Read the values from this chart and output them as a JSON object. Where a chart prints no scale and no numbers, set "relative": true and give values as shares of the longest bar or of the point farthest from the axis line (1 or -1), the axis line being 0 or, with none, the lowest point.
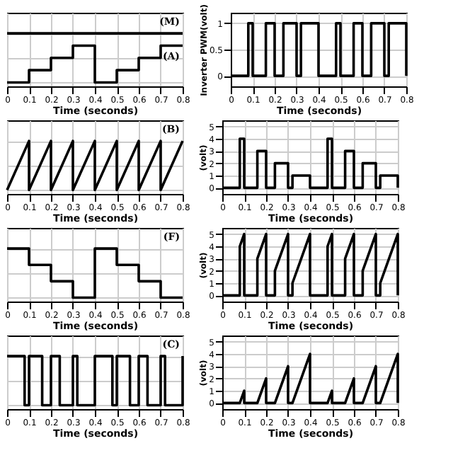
{
  "chart_data": [
    {
      "type": "step",
      "relative": true,
      "xlabel": "Time (seconds)",
      "xlim": [
        0,
        0.8
      ],
      "xticks": [
        0,
        0.1,
        0.2,
        0.3,
        0.4,
        0.5,
        0.6,
        0.7,
        0.8
      ],
      "grid": true,
      "series": [
        {
          "name": "(M)",
          "color": "#000000",
          "x": [
            0,
            0.8
          ],
          "values": [
            1,
            1
          ]
        },
        {
          "name": "(A)",
          "color": "#000000",
          "x": [
            0,
            0.1,
            0.2,
            0.3,
            0.4,
            0.5,
            0.6,
            0.7,
            0.8
          ],
          "values": [
            0,
            0.25,
            0.5,
            0.75,
            0,
            0.25,
            0.5,
            0.75,
            0.75
          ]
        }
      ]
    },
    {
      "type": "step",
      "xlabel": "Time (seconds)",
      "ylabel": "Inverter PWM(volt)",
      "xlim": [
        0,
        0.8
      ],
      "xticks": [
        0,
        0.1,
        0.2,
        0.3,
        0.4,
        0.5,
        0.6,
        0.7,
        0.8
      ],
      "ylim": [
        -0.2,
        1.2
      ],
      "yticks": [
        0,
        0.5,
        1
      ],
      "grid": true,
      "series": [
        {
          "color": "#000000",
          "x": [
            0,
            0.08,
            0.1,
            0.16,
            0.2,
            0.24,
            0.3,
            0.32,
            0.4,
            0.48,
            0.5,
            0.56,
            0.6,
            0.64,
            0.7,
            0.72,
            0.8
          ],
          "values": [
            0,
            1,
            0,
            1,
            0,
            1,
            0,
            1,
            0,
            1,
            0,
            1,
            0,
            1,
            0,
            1,
            0
          ]
        }
      ]
    },
    {
      "type": "line",
      "relative": true,
      "xlabel": "Time (seconds)",
      "xlim": [
        0,
        0.8
      ],
      "xticks": [
        0,
        0.1,
        0.2,
        0.3,
        0.4,
        0.5,
        0.6,
        0.7,
        0.8
      ],
      "grid": true,
      "series": [
        {
          "name": "(B)",
          "color": "#000000",
          "x": [
            0,
            0.1,
            0.1,
            0.2,
            0.2,
            0.3,
            0.3,
            0.4,
            0.4,
            0.5,
            0.5,
            0.6,
            0.6,
            0.7,
            0.7,
            0.8
          ],
          "values": [
            0,
            1,
            0,
            1,
            0,
            1,
            0,
            1,
            0,
            1,
            0,
            1,
            0,
            1,
            0,
            1
          ]
        }
      ]
    },
    {
      "type": "step",
      "xlabel": "Time (seconds)",
      "ylabel": "(volt)",
      "xlim": [
        0,
        0.8
      ],
      "xticks": [
        0,
        0.1,
        0.2,
        0.3,
        0.4,
        0.5,
        0.6,
        0.7,
        0.8
      ],
      "ylim": [
        -0.5,
        5.5
      ],
      "yticks": [
        0,
        1,
        2,
        3,
        4,
        5
      ],
      "grid": true,
      "series": [
        {
          "color": "#000000",
          "x": [
            0,
            0.08,
            0.1,
            0.16,
            0.2,
            0.24,
            0.3,
            0.32,
            0.4,
            0.48,
            0.5,
            0.56,
            0.6,
            0.64,
            0.7,
            0.72,
            0.8
          ],
          "values": [
            0,
            4,
            0,
            3,
            0,
            2,
            0,
            1,
            0,
            4,
            0,
            3,
            0,
            2,
            0,
            1,
            0
          ]
        }
      ]
    },
    {
      "type": "step",
      "relative": true,
      "xlabel": "Time (seconds)",
      "xlim": [
        0,
        0.8
      ],
      "xticks": [
        0,
        0.1,
        0.2,
        0.3,
        0.4,
        0.5,
        0.6,
        0.7,
        0.8
      ],
      "grid": true,
      "series": [
        {
          "name": "(F)",
          "color": "#000000",
          "x": [
            0,
            0.1,
            0.2,
            0.3,
            0.4,
            0.5,
            0.6,
            0.7,
            0.8
          ],
          "values": [
            1,
            0.667,
            0.333,
            0,
            1,
            0.667,
            0.333,
            0,
            0
          ]
        }
      ]
    },
    {
      "type": "line",
      "xlabel": "Time (seconds)",
      "ylabel": "(volt)",
      "xlim": [
        0,
        0.8
      ],
      "xticks": [
        0,
        0.1,
        0.2,
        0.3,
        0.4,
        0.5,
        0.6,
        0.7,
        0.8
      ],
      "ylim": [
        -0.5,
        5.5
      ],
      "yticks": [
        0,
        1,
        2,
        3,
        4,
        5
      ],
      "grid": true,
      "series": [
        {
          "color": "#000000",
          "x": [
            0,
            0.08,
            0.08,
            0.1,
            0.1,
            0.16,
            0.16,
            0.2,
            0.2,
            0.24,
            0.24,
            0.3,
            0.3,
            0.32,
            0.32,
            0.4,
            0.4,
            0.48,
            0.48,
            0.5,
            0.5,
            0.56,
            0.56,
            0.6,
            0.6,
            0.64,
            0.64,
            0.7,
            0.7,
            0.72,
            0.72,
            0.8,
            0.8
          ],
          "values": [
            0,
            0,
            4,
            5,
            0,
            0,
            3,
            5,
            0,
            0,
            2,
            5,
            0,
            0,
            1,
            5,
            0,
            0,
            4,
            5,
            0,
            0,
            3,
            5,
            0,
            0,
            2,
            5,
            0,
            0,
            1,
            5,
            0
          ]
        }
      ]
    },
    {
      "type": "step",
      "relative": true,
      "xlabel": "Time (seconds)",
      "xlim": [
        0,
        0.8
      ],
      "xticks": [
        0,
        0.1,
        0.2,
        0.3,
        0.4,
        0.5,
        0.6,
        0.7,
        0.8
      ],
      "grid": true,
      "series": [
        {
          "name": "(C)",
          "color": "#000000",
          "x": [
            0,
            0.08,
            0.1,
            0.16,
            0.2,
            0.24,
            0.3,
            0.32,
            0.4,
            0.48,
            0.5,
            0.56,
            0.6,
            0.64,
            0.7,
            0.72,
            0.8
          ],
          "values": [
            1,
            0,
            1,
            0,
            1,
            0,
            1,
            0,
            1,
            0,
            1,
            0,
            1,
            0,
            1,
            0,
            1
          ]
        }
      ]
    },
    {
      "type": "line",
      "xlabel": "Time (seconds)",
      "ylabel": "(volt)",
      "xlim": [
        0,
        0.8
      ],
      "xticks": [
        0,
        0.1,
        0.2,
        0.3,
        0.4,
        0.5,
        0.6,
        0.7,
        0.8
      ],
      "ylim": [
        -0.5,
        5.5
      ],
      "yticks": [
        0,
        1,
        2,
        3,
        4,
        5
      ],
      "grid": true,
      "series": [
        {
          "color": "#000000",
          "x": [
            0,
            0.08,
            0.1,
            0.1,
            0.16,
            0.2,
            0.2,
            0.24,
            0.3,
            0.3,
            0.32,
            0.4,
            0.4,
            0.48,
            0.5,
            0.5,
            0.56,
            0.6,
            0.6,
            0.64,
            0.7,
            0.7,
            0.72,
            0.8,
            0.8
          ],
          "values": [
            0,
            0,
            1,
            0,
            0,
            2,
            0,
            0,
            3,
            0,
            0,
            4,
            0,
            0,
            1,
            0,
            0,
            2,
            0,
            0,
            3,
            0,
            0,
            4,
            0
          ]
        }
      ]
    }
  ]
}
